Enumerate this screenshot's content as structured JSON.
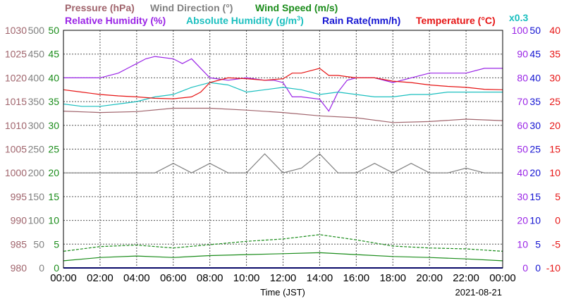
{
  "chart_data": {
    "type": "line",
    "date": "2021-08-21",
    "xlabel": "Time (JST)",
    "x_ticks": [
      "00:00",
      "02:00",
      "04:00",
      "06:00",
      "08:00",
      "10:00",
      "12:00",
      "14:00",
      "16:00",
      "18:00",
      "20:00",
      "22:00",
      "00:00"
    ],
    "headers": {
      "pressure": "Pressure (hPa)",
      "wind_direction": "Wind Direction (°)",
      "wind_speed": "Wind Speed (m/s)",
      "relative_humidity": "Relative Humidity (%)",
      "absolute_humidity_pre": "Absolute Humidity (g/m",
      "absolute_humidity_sup": "3",
      "absolute_humidity_post": ")",
      "rain_rate": "Rain Rate(mm/h)",
      "temperature": "Temperature (°C)",
      "scale_note": "x0.3"
    },
    "axes": {
      "pressure": {
        "ticks": [
          "1030",
          "1025",
          "1020",
          "1015",
          "1010",
          "1005",
          "1000",
          "995",
          "990",
          "985",
          "980"
        ],
        "range": [
          980,
          1030
        ],
        "color": "#a0646c"
      },
      "wind_direction": {
        "ticks": [
          "500",
          "450",
          "400",
          "350",
          "300",
          "250",
          "200",
          "150",
          "100",
          "50",
          "0"
        ],
        "range": [
          0,
          500
        ],
        "color": "#808080"
      },
      "wind_speed": {
        "ticks": [
          "50",
          "45",
          "40",
          "35",
          "30",
          "25",
          "20",
          "15",
          "10",
          "5",
          "0"
        ],
        "range": [
          0,
          50
        ],
        "color": "#1a8c1a"
      },
      "relative_humidity": {
        "ticks": [
          "100",
          "90",
          "80",
          "70",
          "60",
          "50",
          "40",
          "30",
          "20",
          "10",
          "0"
        ],
        "range": [
          0,
          100
        ],
        "color": "#9a24e6"
      },
      "rain_rate": {
        "ticks": [
          "50",
          "45",
          "40",
          "35",
          "30",
          "25",
          "20",
          "15",
          "10",
          "5",
          "0"
        ],
        "range": [
          0,
          50
        ],
        "color": "#1414d2"
      },
      "temperature": {
        "ticks": [
          "40",
          "35",
          "30",
          "25",
          "20",
          "15",
          "10",
          "5",
          "0",
          "-5",
          "-10"
        ],
        "range": [
          -10,
          40
        ],
        "color": "#e61414"
      }
    },
    "series": [
      {
        "name": "Pressure",
        "unit": "hPa",
        "color": "#a0646c",
        "axis": "pressure",
        "x": [
          0,
          2,
          4,
          6,
          8,
          10,
          12,
          14,
          16,
          18,
          20,
          22,
          24
        ],
        "values": [
          1013.0,
          1012.7,
          1012.9,
          1013.6,
          1013.6,
          1013.2,
          1012.7,
          1012.0,
          1011.6,
          1010.6,
          1010.8,
          1011.3,
          1011.0
        ]
      },
      {
        "name": "Wind Direction",
        "unit": "°",
        "color": "#808080",
        "axis": "wind_direction",
        "x": [
          0,
          1,
          2,
          3,
          4,
          5,
          6,
          7,
          8,
          9,
          10,
          11,
          12,
          13,
          14,
          15,
          16,
          17,
          18,
          19,
          20,
          21,
          22,
          23,
          24
        ],
        "values": [
          200,
          200,
          200,
          200,
          200,
          200,
          220,
          200,
          220,
          200,
          200,
          240,
          200,
          210,
          240,
          200,
          200,
          220,
          200,
          220,
          200,
          200,
          210,
          200,
          200
        ]
      },
      {
        "name": "Wind Speed",
        "unit": "m/s",
        "color": "#1a8c1a",
        "axis": "wind_speed",
        "x": [
          0,
          2,
          4,
          6,
          8,
          10,
          12,
          14,
          16,
          18,
          20,
          22,
          24
        ],
        "values": [
          1.5,
          2.2,
          2.5,
          2.2,
          2.6,
          2.8,
          3.0,
          3.2,
          2.8,
          2.4,
          2.2,
          1.9,
          1.5
        ]
      },
      {
        "name": "Wind Speed (max)",
        "unit": "m/s",
        "color": "#1a8c1a",
        "axis": "wind_speed",
        "x": [
          0,
          2,
          4,
          6,
          8,
          10,
          12,
          14,
          16,
          18,
          20,
          22,
          24
        ],
        "values": [
          3.5,
          4.5,
          4.8,
          4.2,
          4.9,
          5.6,
          6.1,
          7.0,
          5.9,
          4.6,
          4.2,
          4.0,
          3.5
        ]
      },
      {
        "name": "Relative Humidity",
        "unit": "%",
        "color": "#9a24e6",
        "axis": "relative_humidity",
        "x": [
          0,
          1,
          2,
          3,
          3.5,
          4,
          4.5,
          5,
          6,
          6.5,
          7,
          7.5,
          8,
          9,
          10,
          11,
          11.5,
          12,
          12.5,
          13,
          14,
          14.5,
          15,
          15.5,
          16,
          17,
          18,
          19,
          20,
          21,
          22,
          23,
          24
        ],
        "values": [
          80,
          80,
          80,
          82,
          84,
          86,
          88,
          89,
          88,
          86,
          88,
          84,
          80,
          79,
          80,
          79,
          79,
          78,
          72,
          72,
          71,
          66,
          74,
          79,
          80,
          80,
          78,
          80,
          82,
          82,
          82,
          84,
          84
        ]
      },
      {
        "name": "Absolute Humidity",
        "unit": "g/m3",
        "color": "#1abfbf",
        "axis": "relative_humidity",
        "x": [
          0,
          1,
          2,
          3,
          4,
          5,
          6,
          7,
          8,
          9,
          10,
          11,
          12,
          13,
          14,
          15,
          16,
          17,
          18,
          19,
          20,
          21,
          22,
          23,
          24
        ],
        "values": [
          69,
          68,
          68,
          69,
          70,
          72,
          73,
          76,
          78,
          77,
          74,
          75,
          76,
          75,
          73,
          74,
          73,
          72,
          72,
          73,
          73,
          74,
          74,
          74,
          74
        ]
      },
      {
        "name": "Rain Rate",
        "unit": "mm/h",
        "color": "#1414d2",
        "axis": "rain_rate",
        "x": [
          0,
          24
        ],
        "values": [
          0,
          0
        ]
      },
      {
        "name": "Temperature",
        "unit": "°C",
        "color": "#e61414",
        "axis": "temperature",
        "x": [
          0,
          1,
          2,
          3,
          4,
          5,
          6,
          7,
          7.5,
          8,
          9,
          10,
          11,
          12,
          12.5,
          13,
          14,
          14.5,
          15,
          16,
          17,
          18,
          19,
          20,
          21,
          22,
          23,
          24
        ],
        "values": [
          27.5,
          27,
          26.5,
          26.2,
          26,
          25.7,
          25.6,
          26,
          27,
          29,
          30,
          29.8,
          29.5,
          29.8,
          31,
          31,
          32,
          30.5,
          30.5,
          30,
          30,
          29.3,
          29,
          28.5,
          28.2,
          28,
          27.6,
          27.5
        ]
      }
    ],
    "grid": true
  }
}
